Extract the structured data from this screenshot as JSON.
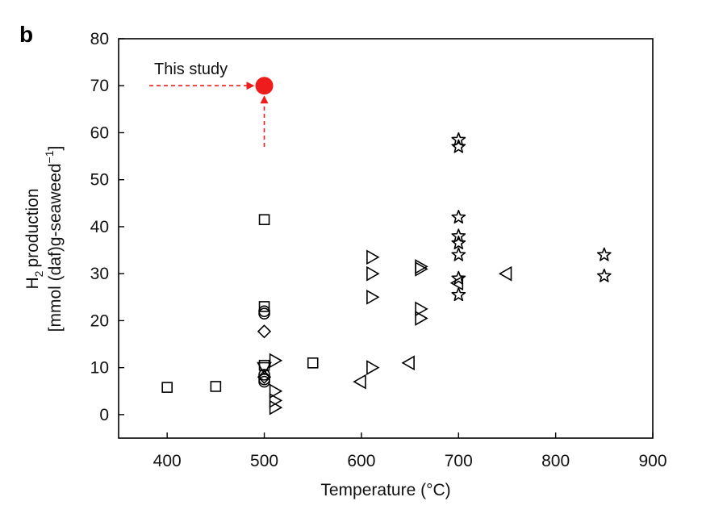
{
  "chart_data": {
    "type": "scatter",
    "panel_label": "b",
    "xlabel": "Temperature (°C)",
    "ylabel_line1": "production",
    "ylabel_line1_prefix": "H",
    "ylabel_line1_sub": "2",
    "ylabel_line2": "[mmol (daf)g-seaweed",
    "ylabel_line2_sup": "−1",
    "ylabel_line2_close": "]",
    "xlim": [
      350,
      900
    ],
    "ylim": [
      -5,
      80
    ],
    "xticks": [
      "400",
      "500",
      "600",
      "700",
      "800",
      "900"
    ],
    "xtick_values": [
      400,
      500,
      600,
      700,
      800,
      900
    ],
    "yticks": [
      "0",
      "10",
      "20",
      "30",
      "40",
      "50",
      "60",
      "70",
      "80"
    ],
    "ytick_values": [
      0,
      10,
      20,
      30,
      40,
      50,
      60,
      70,
      80
    ],
    "grid": false,
    "highlight": {
      "label": "This study",
      "x": 500,
      "y": 70,
      "color": "#ee1c1c"
    },
    "series": [
      {
        "marker": "square",
        "points": [
          [
            400,
            5.8
          ],
          [
            450,
            6
          ],
          [
            500,
            41.5
          ],
          [
            500,
            23
          ],
          [
            500,
            10.5
          ],
          [
            550,
            11
          ]
        ]
      },
      {
        "marker": "circle",
        "points": [
          [
            500,
            22
          ],
          [
            500,
            21.5
          ],
          [
            500,
            8.5
          ],
          [
            500,
            7.5
          ],
          [
            500,
            7
          ]
        ]
      },
      {
        "marker": "diamond",
        "points": [
          [
            500,
            17.7
          ],
          [
            500,
            8
          ]
        ]
      },
      {
        "marker": "triangle-down",
        "points": [
          [
            500,
            10
          ]
        ]
      },
      {
        "marker": "triangle-right",
        "points": [
          [
            510,
            11.5
          ],
          [
            510,
            5
          ],
          [
            510,
            3
          ],
          [
            510,
            1.5
          ],
          [
            610,
            33.5
          ],
          [
            610,
            30
          ],
          [
            610,
            25
          ],
          [
            610,
            10
          ],
          [
            660,
            31.5
          ],
          [
            660,
            31
          ],
          [
            660,
            22.5
          ],
          [
            660,
            20.5
          ]
        ]
      },
      {
        "marker": "triangle-left",
        "points": [
          [
            600,
            7
          ],
          [
            650,
            11
          ],
          [
            700,
            28
          ],
          [
            750,
            30
          ]
        ]
      },
      {
        "marker": "star",
        "points": [
          [
            700,
            58.5
          ],
          [
            700,
            57
          ],
          [
            700,
            42
          ],
          [
            700,
            38
          ],
          [
            700,
            36.5
          ],
          [
            700,
            34
          ],
          [
            700,
            29
          ],
          [
            700,
            25.5
          ],
          [
            850,
            34
          ],
          [
            850,
            29.5
          ]
        ]
      }
    ]
  }
}
